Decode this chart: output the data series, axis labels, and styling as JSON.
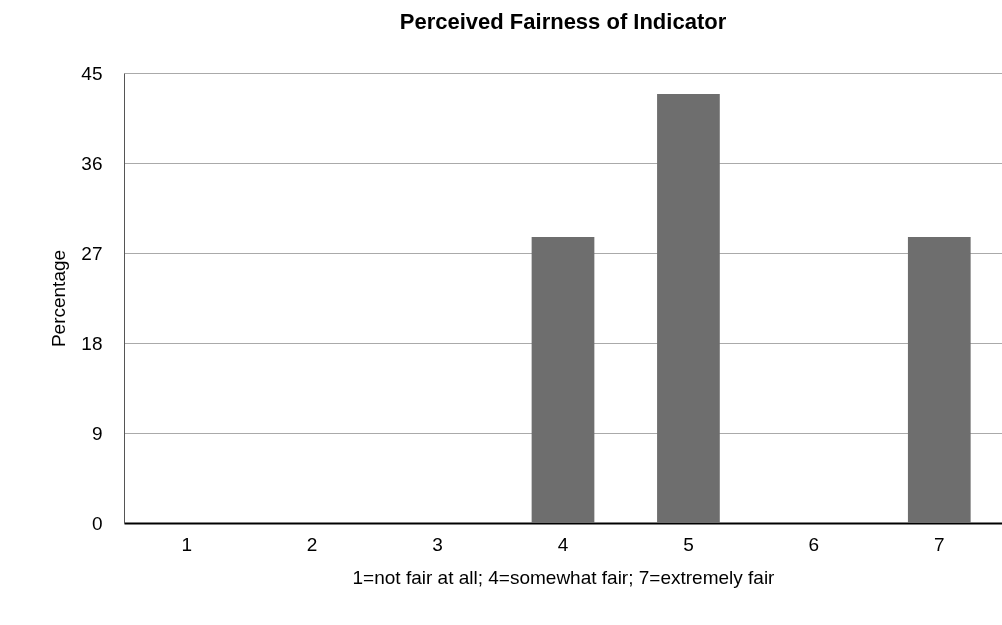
{
  "chart_data": {
    "type": "bar",
    "title": "Perceived Fairness of Indicator",
    "xlabel": "1=not fair at all; 4=somewhat fair; 7=extremely fair",
    "ylabel": "Percentage",
    "categories": [
      "1",
      "2",
      "3",
      "4",
      "5",
      "6",
      "7"
    ],
    "values": [
      0,
      0,
      0,
      28.6,
      42.9,
      0,
      28.6
    ],
    "color": "#6e6e6e",
    "ylim": [
      0,
      45
    ],
    "yticks": [
      0,
      9,
      18,
      27,
      36,
      45
    ],
    "grid": "y"
  }
}
